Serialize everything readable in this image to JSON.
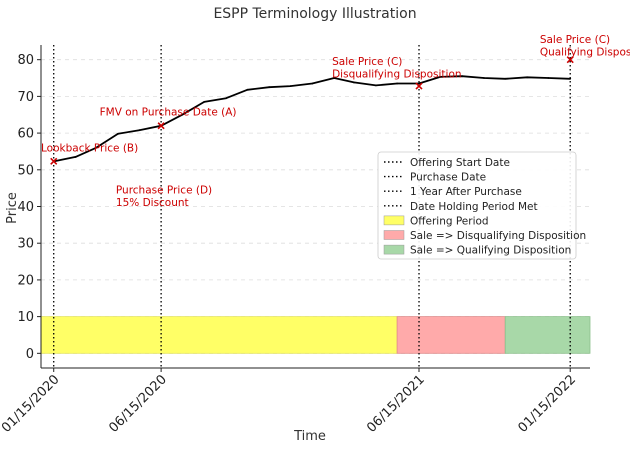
{
  "chart_data": {
    "type": "line",
    "title": "ESPP Terminology Illustration",
    "xlabel": "Time",
    "ylabel": "Price",
    "ylim": [
      -4,
      84
    ],
    "yticks": [
      0,
      10,
      20,
      30,
      40,
      50,
      60,
      70,
      80
    ],
    "xlim": [
      "2019-12-28",
      "2022-02-12"
    ],
    "xticks": [
      {
        "date": "2020-01-15",
        "label": "01/15/2020"
      },
      {
        "date": "2020-06-15",
        "label": "06/15/2020"
      },
      {
        "date": "2021-06-15",
        "label": "06/15/2021"
      },
      {
        "date": "2022-01-15",
        "label": "01/15/2022"
      }
    ],
    "grid": "y-dashed",
    "price_series": {
      "dates": [
        "2020-01-15",
        "2020-02-15",
        "2020-03-15",
        "2020-04-15",
        "2020-05-15",
        "2020-06-15",
        "2020-07-15",
        "2020-08-15",
        "2020-09-15",
        "2020-10-15",
        "2020-11-15",
        "2020-12-15",
        "2021-01-15",
        "2021-02-15",
        "2021-03-15",
        "2021-04-15",
        "2021-05-15",
        "2021-06-15",
        "2021-07-15",
        "2021-08-15",
        "2021-09-15",
        "2021-10-15",
        "2021-11-15",
        "2021-12-15",
        "2022-01-15"
      ],
      "values": [
        52.3,
        53.5,
        56,
        59.8,
        60.8,
        62,
        65,
        68.5,
        69.5,
        71.8,
        72.5,
        72.8,
        73.5,
        75,
        73.8,
        73,
        73.5,
        73.5,
        75.3,
        75.5,
        75,
        74.8,
        75.2,
        75,
        74.8
      ],
      "color": "#000000"
    },
    "legend_placement": "center-right",
    "legend": [
      {
        "label": "Offering Start Date",
        "kind": "dotted-line",
        "color": "#000000"
      },
      {
        "label": "Purchase Date",
        "kind": "dotted-line",
        "color": "#000000"
      },
      {
        "label": "1 Year After Purchase",
        "kind": "dotted-line",
        "color": "#000000"
      },
      {
        "label": "Date Holding Period Met",
        "kind": "dotted-line",
        "color": "#000000"
      },
      {
        "label": "Offering Period",
        "kind": "patch",
        "color": "#ffff66"
      },
      {
        "label": "Sale => Disqualifying Disposition",
        "kind": "patch",
        "color": "#ffaaaa"
      },
      {
        "label": "Sale => Qualifying Disposition",
        "kind": "patch",
        "color": "#a8d8a8"
      }
    ],
    "vertical_lines": [
      {
        "date": "2020-01-15"
      },
      {
        "date": "2020-06-15"
      },
      {
        "date": "2021-06-15"
      },
      {
        "date": "2022-01-15"
      }
    ],
    "spans": [
      {
        "start": "2019-12-28",
        "end": "2021-05-15",
        "y0": 0,
        "y1": 10,
        "color": "#ffff66",
        "edge": "#e6e65c"
      },
      {
        "start": "2021-05-15",
        "end": "2021-10-15",
        "y0": 0,
        "y1": 10,
        "color": "#ffaaaa",
        "edge": "#e08a8a"
      },
      {
        "start": "2021-10-15",
        "end": "2022-02-12",
        "y0": 0,
        "y1": 10,
        "color": "#a8d8a8",
        "edge": "#8cc08c"
      }
    ],
    "markers": [
      {
        "date": "2020-01-15",
        "y": 52.3,
        "color": "#cc0000"
      },
      {
        "date": "2020-06-15",
        "y": 62,
        "color": "#cc0000"
      },
      {
        "date": "2021-06-15",
        "y": 72.8,
        "color": "#cc0000"
      },
      {
        "date": "2022-01-15",
        "y": 80,
        "color": "#cc0000"
      }
    ],
    "annotations": [
      {
        "lines": [
          "Lookback Price (B)"
        ],
        "date": "2019-12-28",
        "y": 55
      },
      {
        "lines": [
          "FMV on Purchase Date (A)"
        ],
        "date": "2020-03-20",
        "y": 64.8
      },
      {
        "lines": [
          "Purchase Price (D)",
          "15% Discount"
        ],
        "date": "2020-04-12",
        "y": 43.5
      },
      {
        "lines": [
          "Sale Price (C)",
          "Disqualifying Disposition"
        ],
        "date": "2021-02-12",
        "y": 78.6
      },
      {
        "lines": [
          "Sale Price (C)",
          "Qualifying Disposition"
        ],
        "date": "2021-12-03",
        "y": 84.5
      }
    ],
    "annotation_color": "#cc0000"
  }
}
